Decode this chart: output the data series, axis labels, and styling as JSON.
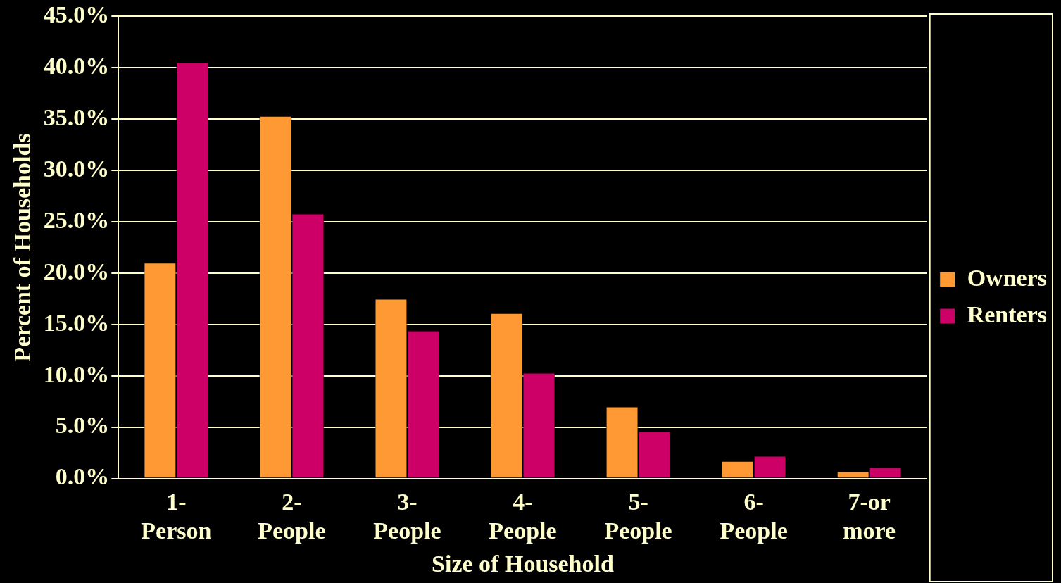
{
  "chart_data": {
    "type": "bar",
    "xlabel": "Size of Household",
    "ylabel": "Percent of Households",
    "categories": [
      "1- Person",
      "2- People",
      "3- People",
      "4- People",
      "5- People",
      "6- People",
      "7-or more"
    ],
    "series": [
      {
        "name": "Owners",
        "color": "#ff9933",
        "values": [
          21.0,
          35.3,
          17.5,
          16.1,
          7.0,
          1.7,
          0.7
        ]
      },
      {
        "name": "Renters",
        "color": "#cc0066",
        "values": [
          40.5,
          25.8,
          14.4,
          10.3,
          4.6,
          2.2,
          1.1
        ]
      }
    ],
    "ylim": [
      0,
      45
    ],
    "yticks": [
      {
        "value": 0,
        "label": "0.0%"
      },
      {
        "value": 5,
        "label": "5.0%"
      },
      {
        "value": 10,
        "label": "10.0%"
      },
      {
        "value": 15,
        "label": "15.0%"
      },
      {
        "value": 20,
        "label": "20.0%"
      },
      {
        "value": 25,
        "label": "25.0%"
      },
      {
        "value": 30,
        "label": "30.0%"
      },
      {
        "value": 35,
        "label": "35.0%"
      },
      {
        "value": 40,
        "label": "40.0%"
      },
      {
        "value": 45,
        "label": "45.0%"
      }
    ],
    "grid": "y",
    "legend": "right"
  }
}
